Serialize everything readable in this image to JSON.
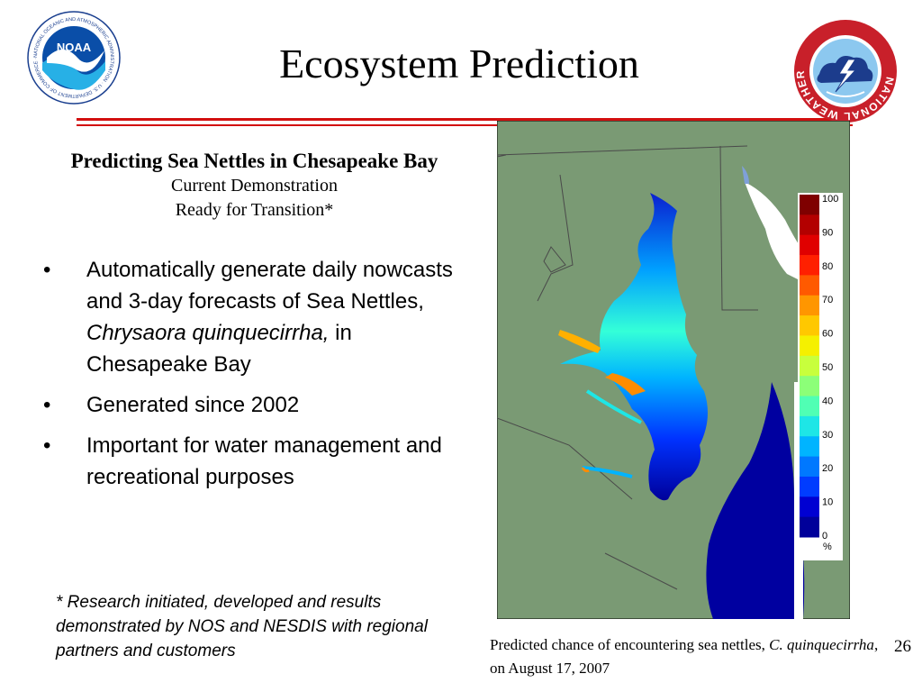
{
  "slide": {
    "title": "Ecosystem Prediction",
    "subheading": "Predicting Sea Nettles in Chesapeake Bay",
    "sublines": [
      "Current Demonstration",
      "Ready for Transition*"
    ],
    "bullets": [
      {
        "pre": "Automatically generate daily nowcasts and 3-day forecasts of Sea Nettles, ",
        "italic": "Chrysaora quinquecirrha,",
        "post": " in Chesapeake Bay"
      },
      {
        "pre": "Generated since 2002",
        "italic": "",
        "post": ""
      },
      {
        "pre": "Important for water management and recreational purposes",
        "italic": "",
        "post": ""
      }
    ],
    "footnote": "* Research initiated, developed and results demonstrated by NOS and NESDIS with regional partners and customers",
    "caption": {
      "pre": "Predicted chance of encountering sea nettles, ",
      "italic": "C. quinquecirrha",
      "post": ", on August 17, 2007"
    },
    "page_number": "26"
  },
  "logos": {
    "noaa_label": "NOAA",
    "noaa_ring_text": "NATIONAL OCEANIC AND ATMOSPHERIC ADMINISTRATION · U.S. DEPARTMENT OF COMMERCE ·",
    "nws_ring_text": "NATIONAL WEATHER SERVICE"
  },
  "colorbar": {
    "ticks": [
      "100",
      "90",
      "80",
      "70",
      "60",
      "50",
      "40",
      "30",
      "20",
      "10",
      "0"
    ],
    "unit": "%",
    "colors": [
      "#7f0000",
      "#b30000",
      "#e00000",
      "#ff2000",
      "#ff5a00",
      "#ff9600",
      "#ffc800",
      "#f5f000",
      "#c8ff3c",
      "#8cff78",
      "#50ffb4",
      "#1ee6e6",
      "#00b4ff",
      "#0078ff",
      "#003cff",
      "#0000d2",
      "#00009a"
    ]
  },
  "colors": {
    "accent_rule": "#d20f0f",
    "land": "#7a9a74",
    "bay_low": "#00009a",
    "noaa_blue": "#0a4ea8",
    "nws_red": "#c8202a"
  }
}
